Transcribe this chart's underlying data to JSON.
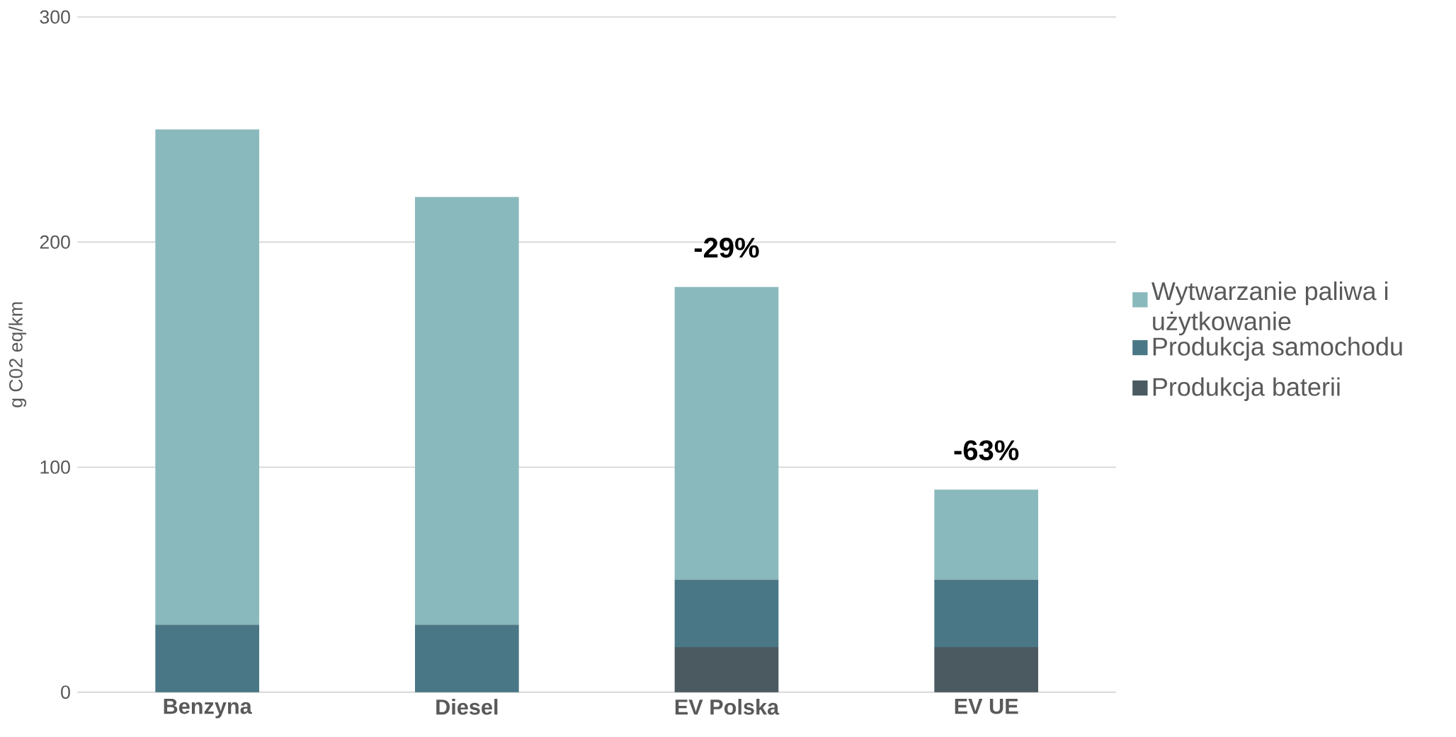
{
  "chart_data": {
    "type": "bar",
    "stacked": true,
    "ylabel": "g C02 eq/km",
    "categories": [
      "Benzyna",
      "Diesel",
      "EV Polska",
      "EV UE"
    ],
    "series": [
      {
        "name": "Produkcja baterii",
        "color": "#4a5a60",
        "values": [
          0,
          0,
          20,
          20
        ]
      },
      {
        "name": "Produkcja samochodu",
        "color": "#4a7785",
        "values": [
          30,
          30,
          30,
          30
        ]
      },
      {
        "name": "Wytwarzanie paliwa i użytkowanie",
        "color": "#8ab9bd",
        "values": [
          220,
          190,
          130,
          40
        ]
      }
    ],
    "ylim": [
      0,
      300
    ],
    "yticks": [
      0,
      100,
      200,
      300
    ],
    "grid": "y",
    "legend": "right",
    "annotations": [
      "-29%",
      "-63%"
    ]
  }
}
